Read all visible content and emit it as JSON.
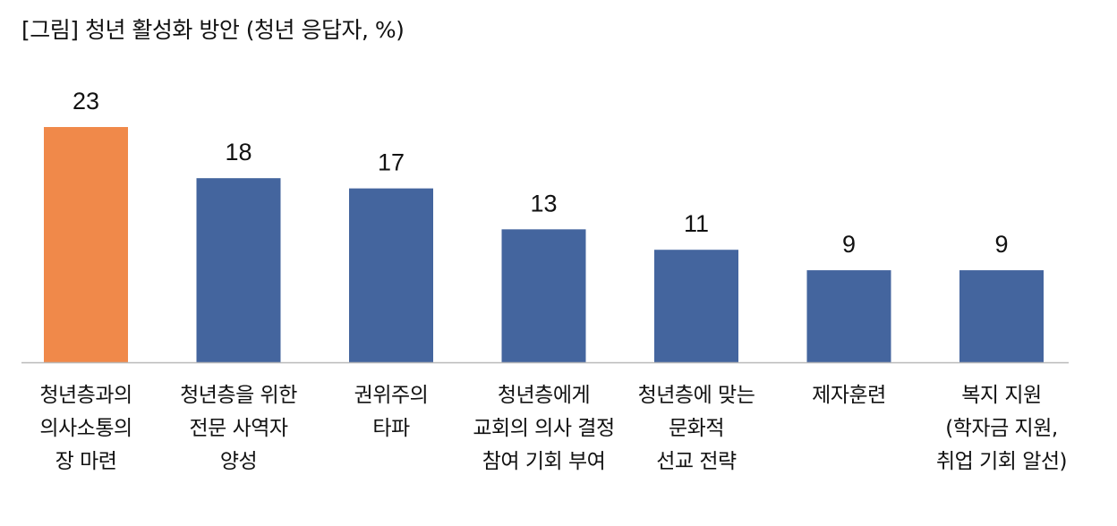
{
  "chart_data": {
    "type": "bar",
    "title": "[그림] 청년 활성화 방안 (청년 응답자, %)",
    "categories": [
      [
        "청년층과의",
        "의사소통의",
        "장 마련"
      ],
      [
        "청년층을 위한",
        "전문 사역자",
        "양성"
      ],
      [
        "권위주의",
        "타파"
      ],
      [
        "청년층에게",
        "교회의 의사 결정",
        "참여 기회 부여"
      ],
      [
        "청년층에 맞는",
        "문화적",
        "선교 전략"
      ],
      [
        "제자훈련"
      ],
      [
        "복지 지원",
        "(학자금 지원,",
        "취업 기회 알선)"
      ]
    ],
    "values": [
      23,
      18,
      17,
      13,
      11,
      9,
      9
    ],
    "value_labels": [
      "23",
      "18",
      "17",
      "13",
      "11",
      "9",
      "9"
    ],
    "highlight_index": 0,
    "ylim": [
      0,
      23
    ],
    "grid": false,
    "legend": "none",
    "xlabel": "",
    "ylabel": "",
    "colors": {
      "highlight": "#f0894a",
      "bar": "#44659e",
      "axis": "#b9b9b9",
      "text": "#111111"
    }
  }
}
